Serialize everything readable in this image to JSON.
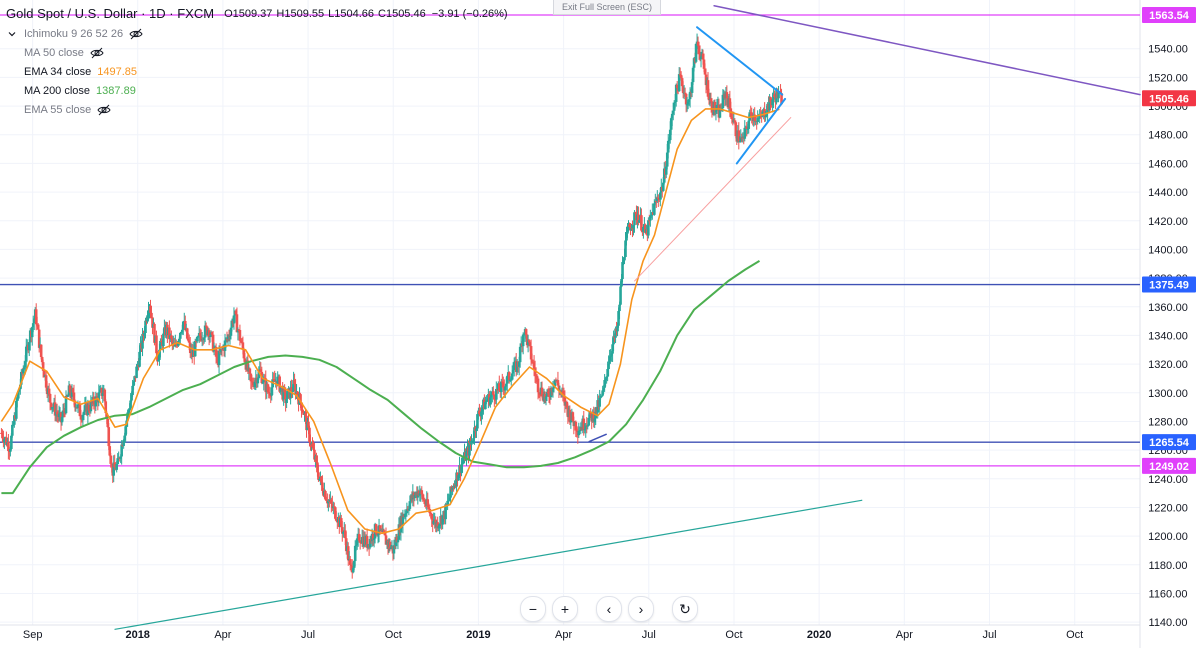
{
  "header": {
    "title": "Gold Spot / U.S. Dollar · 1D · FXCM",
    "ohlc": [
      {
        "k": "O",
        "v": "1509.37"
      },
      {
        "k": "H",
        "v": "1509.55"
      },
      {
        "k": "L",
        "v": "1504.66"
      },
      {
        "k": "C",
        "v": "1505.46"
      }
    ],
    "change": "−3.91 (−0.26%)",
    "change_color": "#131722",
    "exit_fullscreen": "Exit Full Screen (ESC)"
  },
  "indicators": [
    {
      "label": "Ichimoku 9 26 52 26",
      "value": "",
      "hidden": true,
      "color": "#787b86",
      "icon": "eye-off-icon",
      "chevron": true
    },
    {
      "label": "MA 50 close",
      "value": "",
      "hidden": true,
      "color": "#787b86",
      "icon": "eye-off-icon",
      "chevron": false
    },
    {
      "label": "EMA 34 close",
      "value": "1497.85",
      "hidden": false,
      "color": "#f79520",
      "icon": "",
      "chevron": false
    },
    {
      "label": "MA 200 close",
      "value": "1387.89",
      "hidden": false,
      "color": "#4caf50",
      "icon": "",
      "chevron": false
    },
    {
      "label": "EMA 55 close",
      "value": "",
      "hidden": true,
      "color": "#787b86",
      "icon": "eye-off-icon",
      "chevron": false
    }
  ],
  "navbar": {
    "buttons": [
      {
        "name": "zoom-out-button",
        "glyph": "−"
      },
      {
        "name": "zoom-in-button",
        "glyph": "+"
      },
      {
        "name": "scroll-left-button",
        "glyph": "‹"
      },
      {
        "name": "scroll-right-button",
        "glyph": "›"
      },
      {
        "name": "reset-chart-button",
        "glyph": "↻"
      }
    ]
  },
  "chart_data": {
    "type": "candlestick",
    "title": "Gold Spot / U.S. Dollar · 1D · FXCM",
    "y_ticks": [
      "1140.00",
      "1160.00",
      "1180.00",
      "1200.00",
      "1220.00",
      "1240.00",
      "1260.00",
      "1280.00",
      "1300.00",
      "1320.00",
      "1340.00",
      "1360.00",
      "1380.00",
      "1400.00",
      "1420.00",
      "1440.00",
      "1460.00",
      "1480.00",
      "1500.00",
      "1520.00",
      "1540.00"
    ],
    "ylim": [
      1138,
      1574
    ],
    "x_ticks": [
      {
        "label": "Sep",
        "t": 3.3
      },
      {
        "label": "2018",
        "t": 7.0
      },
      {
        "label": "Apr",
        "t": 10.0
      },
      {
        "label": "Jul",
        "t": 13.0
      },
      {
        "label": "Oct",
        "t": 16.0
      },
      {
        "label": "2019",
        "t": 19.0
      },
      {
        "label": "Apr",
        "t": 22.0
      },
      {
        "label": "Jul",
        "t": 25.0
      },
      {
        "label": "Oct",
        "t": 28.0
      },
      {
        "label": "2020",
        "t": 31.0
      },
      {
        "label": "Apr",
        "t": 34.0
      },
      {
        "label": "Jul",
        "t": 37.0
      },
      {
        "label": "Oct",
        "t": 40.0
      }
    ],
    "xlim": [
      2.15,
      42.3
    ],
    "price_path": [
      [
        2.2,
        1272
      ],
      [
        2.5,
        1262
      ],
      [
        2.8,
        1300
      ],
      [
        3.2,
        1340
      ],
      [
        3.4,
        1355
      ],
      [
        3.6,
        1325
      ],
      [
        3.9,
        1295
      ],
      [
        4.3,
        1280
      ],
      [
        4.6,
        1302
      ],
      [
        5.0,
        1285
      ],
      [
        5.4,
        1292
      ],
      [
        5.8,
        1302
      ],
      [
        6.1,
        1245
      ],
      [
        6.3,
        1250
      ],
      [
        6.6,
        1280
      ],
      [
        6.9,
        1310
      ],
      [
        7.2,
        1340
      ],
      [
        7.4,
        1365
      ],
      [
        7.7,
        1325
      ],
      [
        8.0,
        1345
      ],
      [
        8.3,
        1330
      ],
      [
        8.6,
        1350
      ],
      [
        8.9,
        1325
      ],
      [
        9.2,
        1340
      ],
      [
        9.5,
        1345
      ],
      [
        9.8,
        1322
      ],
      [
        10.2,
        1340
      ],
      [
        10.4,
        1355
      ],
      [
        10.7,
        1330
      ],
      [
        11.0,
        1305
      ],
      [
        11.3,
        1315
      ],
      [
        11.6,
        1300
      ],
      [
        11.9,
        1310
      ],
      [
        12.2,
        1295
      ],
      [
        12.5,
        1305
      ],
      [
        12.8,
        1290
      ],
      [
        13.1,
        1265
      ],
      [
        13.4,
        1240
      ],
      [
        13.7,
        1225
      ],
      [
        14.0,
        1215
      ],
      [
        14.3,
        1200
      ],
      [
        14.5,
        1175
      ],
      [
        14.8,
        1200
      ],
      [
        15.1,
        1195
      ],
      [
        15.4,
        1205
      ],
      [
        15.7,
        1198
      ],
      [
        16.0,
        1190
      ],
      [
        16.3,
        1212
      ],
      [
        16.6,
        1225
      ],
      [
        16.9,
        1232
      ],
      [
        17.2,
        1220
      ],
      [
        17.5,
        1208
      ],
      [
        17.8,
        1215
      ],
      [
        18.1,
        1235
      ],
      [
        18.4,
        1250
      ],
      [
        18.7,
        1262
      ],
      [
        19.0,
        1285
      ],
      [
        19.3,
        1295
      ],
      [
        19.6,
        1300
      ],
      [
        19.9,
        1305
      ],
      [
        20.2,
        1315
      ],
      [
        20.4,
        1320
      ],
      [
        20.6,
        1345
      ],
      [
        20.8,
        1330
      ],
      [
        21.1,
        1305
      ],
      [
        21.4,
        1295
      ],
      [
        21.7,
        1310
      ],
      [
        22.0,
        1295
      ],
      [
        22.2,
        1285
      ],
      [
        22.5,
        1275
      ],
      [
        22.8,
        1280
      ],
      [
        23.1,
        1285
      ],
      [
        23.4,
        1300
      ],
      [
        23.6,
        1325
      ],
      [
        23.9,
        1345
      ],
      [
        24.1,
        1395
      ],
      [
        24.3,
        1415
      ],
      [
        24.6,
        1425
      ],
      [
        24.9,
        1410
      ],
      [
        25.2,
        1430
      ],
      [
        25.5,
        1445
      ],
      [
        25.7,
        1475
      ],
      [
        25.9,
        1505
      ],
      [
        26.1,
        1520
      ],
      [
        26.4,
        1500
      ],
      [
        26.7,
        1545
      ],
      [
        26.9,
        1530
      ],
      [
        27.2,
        1500
      ],
      [
        27.5,
        1495
      ],
      [
        27.7,
        1510
      ],
      [
        27.9,
        1495
      ],
      [
        28.1,
        1480
      ],
      [
        28.3,
        1475
      ],
      [
        28.6,
        1495
      ],
      [
        28.9,
        1490
      ],
      [
        29.2,
        1500
      ],
      [
        29.5,
        1508
      ],
      [
        29.7,
        1505.46
      ]
    ],
    "ema34_path": [
      [
        2.2,
        1280
      ],
      [
        2.6,
        1292
      ],
      [
        3.2,
        1322
      ],
      [
        3.8,
        1315
      ],
      [
        4.4,
        1297
      ],
      [
        5.0,
        1292
      ],
      [
        5.6,
        1296
      ],
      [
        6.2,
        1276
      ],
      [
        6.6,
        1278
      ],
      [
        7.2,
        1310
      ],
      [
        7.8,
        1330
      ],
      [
        8.4,
        1335
      ],
      [
        9.0,
        1330
      ],
      [
        9.6,
        1330
      ],
      [
        10.2,
        1333
      ],
      [
        10.8,
        1330
      ],
      [
        11.4,
        1310
      ],
      [
        12.0,
        1305
      ],
      [
        12.6,
        1298
      ],
      [
        13.2,
        1280
      ],
      [
        13.8,
        1250
      ],
      [
        14.4,
        1218
      ],
      [
        15.0,
        1205
      ],
      [
        15.6,
        1202
      ],
      [
        16.2,
        1205
      ],
      [
        16.8,
        1216
      ],
      [
        17.4,
        1218
      ],
      [
        18.0,
        1222
      ],
      [
        18.5,
        1240
      ],
      [
        19.0,
        1262
      ],
      [
        19.6,
        1290
      ],
      [
        20.2,
        1305
      ],
      [
        20.8,
        1318
      ],
      [
        21.4,
        1310
      ],
      [
        22.0,
        1298
      ],
      [
        22.6,
        1290
      ],
      [
        23.2,
        1284
      ],
      [
        23.6,
        1292
      ],
      [
        24.0,
        1320
      ],
      [
        24.4,
        1365
      ],
      [
        24.8,
        1392
      ],
      [
        25.2,
        1410
      ],
      [
        25.6,
        1440
      ],
      [
        26.0,
        1470
      ],
      [
        26.5,
        1490
      ],
      [
        27.0,
        1498
      ],
      [
        27.5,
        1498
      ],
      [
        28.0,
        1495
      ],
      [
        28.5,
        1492
      ],
      [
        29.0,
        1494
      ],
      [
        29.6,
        1497.85
      ]
    ],
    "ma200_path": [
      [
        2.2,
        1230
      ],
      [
        2.6,
        1230
      ],
      [
        3.2,
        1248
      ],
      [
        3.8,
        1262
      ],
      [
        4.4,
        1270
      ],
      [
        5.0,
        1276
      ],
      [
        5.6,
        1281
      ],
      [
        6.2,
        1284
      ],
      [
        6.8,
        1285
      ],
      [
        7.4,
        1290
      ],
      [
        8.0,
        1296
      ],
      [
        8.6,
        1302
      ],
      [
        9.2,
        1306
      ],
      [
        9.8,
        1312
      ],
      [
        10.4,
        1318
      ],
      [
        11.0,
        1322
      ],
      [
        11.6,
        1325
      ],
      [
        12.2,
        1326
      ],
      [
        12.8,
        1325
      ],
      [
        13.4,
        1323
      ],
      [
        14.0,
        1318
      ],
      [
        14.6,
        1310
      ],
      [
        15.2,
        1302
      ],
      [
        15.8,
        1295
      ],
      [
        16.4,
        1285
      ],
      [
        17.0,
        1275
      ],
      [
        17.6,
        1266
      ],
      [
        18.2,
        1258
      ],
      [
        18.8,
        1252
      ],
      [
        19.4,
        1250
      ],
      [
        20.0,
        1248
      ],
      [
        20.6,
        1248
      ],
      [
        21.2,
        1249
      ],
      [
        21.8,
        1251
      ],
      [
        22.4,
        1255
      ],
      [
        23.0,
        1260
      ],
      [
        23.6,
        1266
      ],
      [
        24.2,
        1278
      ],
      [
        24.8,
        1295
      ],
      [
        25.4,
        1315
      ],
      [
        26.0,
        1340
      ],
      [
        26.6,
        1358
      ],
      [
        27.2,
        1368
      ],
      [
        27.8,
        1378
      ],
      [
        28.4,
        1386
      ],
      [
        28.9,
        1392
      ]
    ],
    "horizontal_levels": [
      {
        "price": 1563.54,
        "label": "1563.54",
        "color": "#e040fb",
        "badge_bg": "#e040fb"
      },
      {
        "price": 1375.49,
        "label": "1375.49",
        "color": "#3f51b5",
        "badge_bg": "#2962ff"
      },
      {
        "price": 1265.54,
        "label": "1265.54",
        "color": "#3f51b5",
        "badge_bg": "#2962ff"
      },
      {
        "price": 1249.02,
        "label": "1249.02",
        "color": "#e040fb",
        "badge_bg": "#e040fb"
      }
    ],
    "last_price": {
      "price": 1505.46,
      "label": "1505.46",
      "badge_bg": "#f23645"
    },
    "trendlines": [
      {
        "name": "purple-downtrend-line",
        "color": "#7e57c2",
        "width": 1.5,
        "p1": [
          27.3,
          1570
        ],
        "p2": [
          42.3,
          1508
        ]
      },
      {
        "name": "green-uptrend-line",
        "color": "#26a69a",
        "width": 1.2,
        "p1": [
          6.2,
          1135
        ],
        "p2": [
          32.5,
          1225
        ]
      },
      {
        "name": "pink-trend-line",
        "color": "#f8a0a0",
        "width": 1,
        "p1": [
          24.5,
          1378
        ],
        "p2": [
          30.0,
          1492
        ]
      },
      {
        "name": "triangle-upper-line",
        "color": "#2196f3",
        "width": 2,
        "p1": [
          26.7,
          1555
        ],
        "p2": [
          29.7,
          1508
        ]
      },
      {
        "name": "triangle-lower-line",
        "color": "#2196f3",
        "width": 2,
        "p1": [
          28.1,
          1460
        ],
        "p2": [
          29.8,
          1505
        ]
      },
      {
        "name": "support-tick-line",
        "color": "#3f51b5",
        "width": 1.5,
        "p1": [
          22.9,
          1266
        ],
        "p2": [
          23.5,
          1271
        ]
      }
    ],
    "colors": {
      "up": "#26a69a",
      "down": "#ef5350",
      "ema34": "#f7941d",
      "ma200": "#4caf50",
      "axis_text": "#131722",
      "grid": "#f0f3fa"
    }
  }
}
